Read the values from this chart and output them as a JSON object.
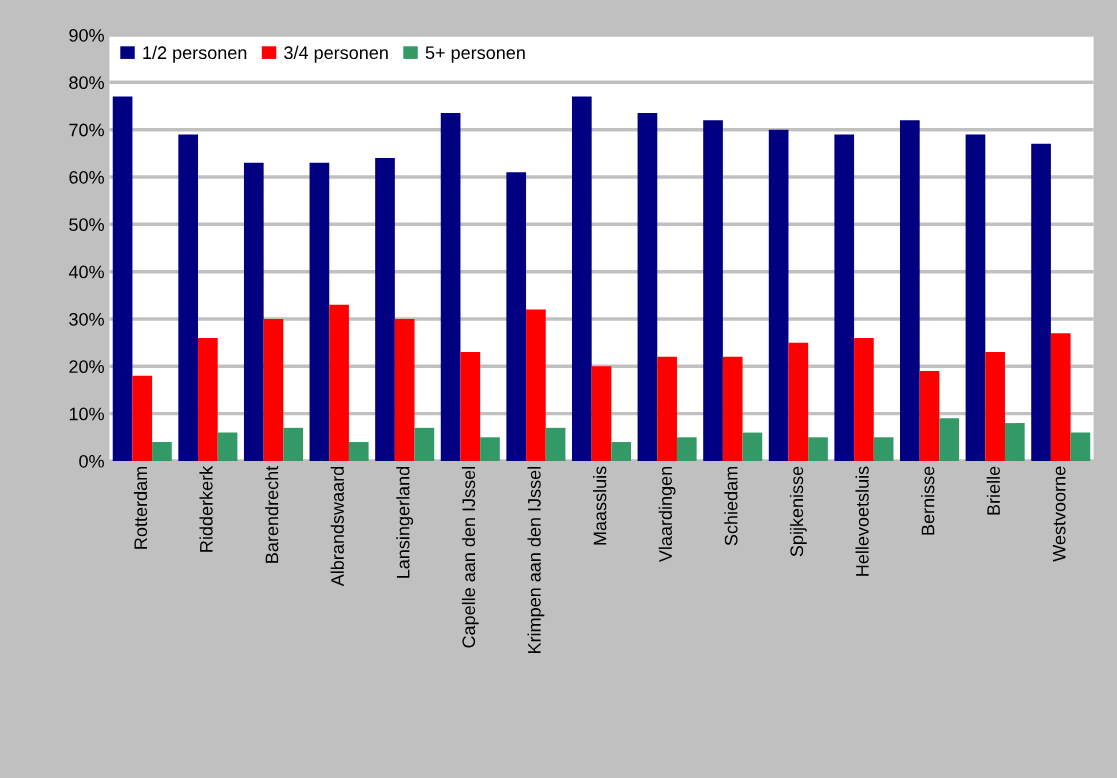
{
  "chart_data": {
    "type": "bar",
    "categories": [
      "Rotterdam",
      "Ridderkerk",
      "Barendrecht",
      "Albrandswaard",
      "Lansingerland",
      "Capelle aan den IJssel",
      "Krimpen aan den IJssel",
      "Maassluis",
      "Vlaardingen",
      "Schiedam",
      "Spijkenisse",
      "Hellevoetsluis",
      "Bernisse",
      "Brielle",
      "Westvoorne"
    ],
    "series": [
      {
        "name": "1/2 personen",
        "color": "#000080",
        "values": [
          77,
          69,
          63,
          63,
          64,
          73.5,
          61,
          77,
          73.5,
          72,
          70,
          69,
          72,
          69,
          67
        ]
      },
      {
        "name": "3/4 personen",
        "color": "#ff0000",
        "values": [
          18,
          26,
          30,
          33,
          30,
          23,
          32,
          20,
          22,
          22,
          25,
          26,
          19,
          23,
          27
        ]
      },
      {
        "name": "5+ personen",
        "color": "#339966",
        "values": [
          4,
          6,
          7,
          4,
          7,
          5,
          7,
          4,
          5,
          6,
          5,
          5,
          9,
          8,
          6
        ]
      }
    ],
    "ylim": [
      0,
      90
    ],
    "yticks": [
      {
        "value": 0,
        "label": "0%"
      },
      {
        "value": 10,
        "label": "10%"
      },
      {
        "value": 20,
        "label": "20%"
      },
      {
        "value": 30,
        "label": "30%"
      },
      {
        "value": 40,
        "label": "40%"
      },
      {
        "value": 50,
        "label": "50%"
      },
      {
        "value": 60,
        "label": "60%"
      },
      {
        "value": 70,
        "label": "70%"
      },
      {
        "value": 80,
        "label": "80%"
      },
      {
        "value": 90,
        "label": "90%"
      }
    ],
    "grid": "y",
    "legend": "top left"
  }
}
